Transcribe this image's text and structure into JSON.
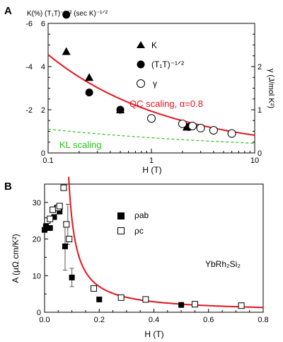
{
  "chart_data": [
    {
      "panel": "A",
      "type": "scatter",
      "x_scale": "log",
      "xlabel": "H (T)",
      "xlim": [
        0.1,
        10
      ],
      "x_ticks": [
        "0.1",
        "1",
        "10"
      ],
      "ylabel_left": "K(%)  (T₁T)⁻¹ᐟ² (sec K)⁻¹ᐟ²",
      "ylim_left": [
        0,
        6
      ],
      "left_ticks": [
        "0",
        "2",
        "4",
        "6"
      ],
      "left_ticks_k": [
        "-2",
        "-4",
        "-6"
      ],
      "ylabel_right": "γ (J/mol K²)",
      "ylim_right": [
        0,
        3
      ],
      "right_ticks": [
        "0",
        "1",
        "2"
      ],
      "series": [
        {
          "name": "K",
          "marker": "triangle",
          "x": [
            0.15,
            0.25,
            0.5,
            2.2
          ],
          "y": [
            4.7,
            3.5,
            2.0,
            1.2
          ]
        },
        {
          "name": "(T₁T)⁻¹ᐟ²",
          "marker": "circle-filled",
          "x": [
            0.15,
            0.25,
            0.5,
            2.3
          ],
          "y": [
            6.4,
            2.8,
            2.0,
            1.2
          ]
        },
        {
          "name": "γ",
          "marker": "circle-open",
          "x": [
            1.0,
            2.0,
            2.5,
            3.0,
            4.0,
            6.0
          ],
          "y": [
            1.6,
            1.35,
            1.25,
            1.15,
            1.05,
            0.9
          ]
        }
      ],
      "annotations": {
        "qc": "QC scaling, α=0.8",
        "kl": "KL scaling"
      },
      "fits": [
        {
          "name": "QC scaling",
          "color": "#e5141e",
          "style": "solid",
          "x": [
            0.1,
            10
          ],
          "y_at_x0.1": 4.55,
          "y_at_x10": 0.82
        },
        {
          "name": "KL scaling",
          "color": "#2fbf1f",
          "style": "dashed",
          "x": [
            0.1,
            10
          ],
          "y_at_x0.1": 1.1,
          "y_at_x10": 0.45
        }
      ]
    },
    {
      "panel": "B",
      "type": "scatter",
      "xlabel": "H (T)",
      "xlim": [
        0,
        0.8
      ],
      "x_ticks": [
        "0.0",
        "0.2",
        "0.4",
        "0.6",
        "0.8"
      ],
      "ylabel": "A (μΩ cm/K²)",
      "ylim": [
        0,
        35
      ],
      "y_ticks": [
        "0",
        "10",
        "20",
        "30"
      ],
      "compound": "YbRh₂Si₂",
      "series": [
        {
          "name": "ρab",
          "marker": "square-filled",
          "x": [
            0.0,
            0.005,
            0.02,
            0.035,
            0.045,
            0.055,
            0.075,
            0.1,
            0.2,
            0.5
          ],
          "y": [
            22.5,
            23.5,
            23.0,
            26.0,
            28.5,
            27.5,
            18.0,
            9.5,
            3.5,
            2.0
          ]
        },
        {
          "name": "ρc",
          "marker": "square-open",
          "x": [
            0.01,
            0.02,
            0.03,
            0.05,
            0.055,
            0.07,
            0.08,
            0.09,
            0.18,
            0.28,
            0.37,
            0.55,
            0.72
          ],
          "y": [
            25.0,
            25.5,
            28.0,
            28.5,
            29.0,
            34.0,
            24.0,
            20.0,
            6.5,
            4.0,
            3.5,
            2.2,
            1.8
          ]
        }
      ],
      "fit": {
        "color": "#e5141e",
        "style": "solid"
      }
    }
  ]
}
